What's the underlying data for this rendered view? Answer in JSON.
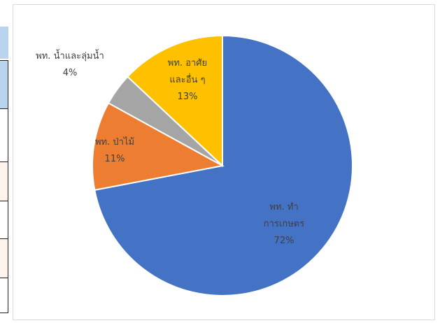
{
  "chart_data": {
    "type": "pie",
    "title": "",
    "slices": [
      {
        "lines": [
          "พท. ทำ",
          "การเกษตร"
        ],
        "pct_label": "72%",
        "value": 72,
        "color": "#4472C4"
      },
      {
        "lines": [
          "พท. ป่าไม้"
        ],
        "pct_label": "11%",
        "value": 11,
        "color": "#ED7D31"
      },
      {
        "lines": [
          "พท. น้ำและลุ่มน้ำ"
        ],
        "pct_label": "4%",
        "value": 4,
        "color": "#A5A5A5"
      },
      {
        "lines": [
          "พท. อาศัย",
          "และอื่น ๆ"
        ],
        "pct_label": "13%",
        "value": 13,
        "color": "#FFC000"
      }
    ]
  }
}
